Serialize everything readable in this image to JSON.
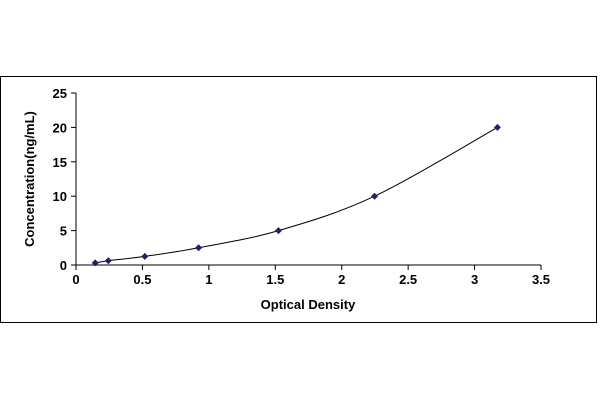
{
  "chart_data": {
    "type": "scatter",
    "title": "",
    "xlabel": "Optical Density",
    "ylabel": "Concentration(ng/mL)",
    "xlim": [
      0,
      3.5
    ],
    "ylim": [
      0,
      25
    ],
    "x_ticks": [
      "0",
      "0.5",
      "1",
      "1.5",
      "2",
      "2.5",
      "3",
      "3.5"
    ],
    "y_ticks": [
      "0",
      "5",
      "10",
      "15",
      "20",
      "25"
    ],
    "grid": false,
    "legend": "none",
    "marker_color": "#1f1f6e",
    "curve_color": "#000000",
    "series": [
      {
        "x": [
          0.145,
          0.243,
          0.518,
          0.923,
          1.524,
          2.247,
          3.172
        ],
        "y": [
          0.312,
          0.625,
          1.25,
          2.5,
          5,
          10,
          20
        ]
      }
    ]
  }
}
